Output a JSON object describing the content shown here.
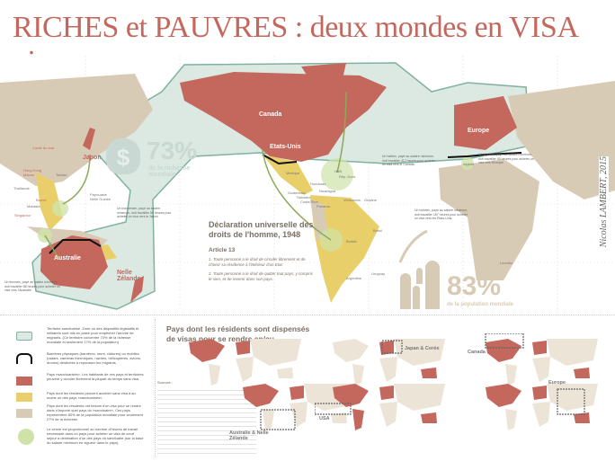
{
  "title": "RICHES et PAUVRES : deux mondes en VISA vis",
  "colors": {
    "sanctuary": "#c4675d",
    "visa_free": "#e9cf6a",
    "visa_needed": "#d8cbb5",
    "zone": "#dbe9e2",
    "circle": "#cfe3a8",
    "arrow": "#8fa85a"
  },
  "map": {
    "labels": {
      "canada": "Canada",
      "usa": "Etats-Unis",
      "europe": "Europe",
      "japon": "Japon",
      "australie": "Australie",
      "nz": "Nelle Zélande",
      "coree": "Corée du sud",
      "hongkong": "Hong Kong Macao",
      "brunei": "Brunei",
      "singapour": "Singapour",
      "taiwan": "Taïwan",
      "thailande": "Thaïlande",
      "malaisie": "Malaisie",
      "papouasie": "Papouasie Nelle Guinée",
      "mexique": "Mexique",
      "honduras": "Honduras",
      "guatemala": "Guatemala",
      "salvador": "Salvador",
      "costarica": "Costa Rica",
      "nicaragua": "Nicaragua",
      "panama": "Panama",
      "haiti": "Haïti",
      "repdom": "Rép. Dom.",
      "venezuela": "Venezuela",
      "guyane": "Guyane",
      "bresil": "Brésil",
      "bolivie": "Bolivie",
      "argentine": "Argentine",
      "uruguay": "Uruguay",
      "algerie": "Algérie",
      "lesotho": "Lesotho"
    },
    "stat_wealth": {
      "value": "73%",
      "caption": "de la richesse mondiale",
      "icon": "money-bag-icon"
    },
    "stat_population": {
      "value": "83%",
      "caption": "de la population mondiale",
      "icon": "people-icon"
    },
    "notes": {
      "haiti": "Un haïtien, payé au salaire minimum, doit travailler 412 heures pour acheter un visa vers le Canada.",
      "bolivie": "Un bolivien, payé au salaire minimum, doit travailler 187 heures pour acheter un visa vers les Etats-Unis.",
      "algerie": "Un algérien, payé au salaire minimum, doit travailler 90 heures pour acheter un visa vers l'Europe.",
      "indonesie": "Un indonésien, payé au salaire minimum, doit travailler 56 heures pour acheter un visa vers le Japon.",
      "timor": "Un timorais, payé au salaire minimum, doit travailler 88 heures pour acheter un visa vers l'Australie."
    },
    "declaration": {
      "title": "Déclaration universelle des droits de l'homme, 1948",
      "article": "Article 13",
      "p1": "1. Toute personne a le droit de circuler librement et de choisir sa résidence à l'intérieur d'un Etat.",
      "p2": "2. Toute personne a le droit de quitter tout pays, y compris le sien, et de revenir dans son pays."
    },
    "signature": "Nicolas LAMBERT, 2015"
  },
  "legend": [
    {
      "text": "Territoire sanctuarisé. Zone où des dispositifs législatifs et militaires sont mis en place pour empêcher l'arrivée de migrants. (Ce territoire concentre 73% de la richesse mondiale et seulement 17% de la population)"
    },
    {
      "text": "Barrières physiques (barrières, murs, clôtures) ou mobiles (radars, caméras thermiques, navires, hélicoptères, avions, drones) destinées à repousser les migrants."
    },
    {
      "text": "Pays «sanctuarisés». Les habitants de ces pays et territoires peuvent y circuler librement la plupart du temps sans visa."
    },
    {
      "text": "Pays dont les résidents peuvent accéder sans visa à au moins un des pays «sanctuarisés»."
    },
    {
      "text": "Pays dont les résidents ont besoin d'un visa pour se rendre dans n'importe quel pays du «sanctuaire». Ces pays représentent 83% de la population mondiale pour seulement 27% de la richesse."
    },
    {
      "text": "Le cercle est proportionnel au nombre d'heures de travail nécessaire dans un pays pour acheter un visa de court séjour à destination d'un des pays du sanctuaire (sur la base du salaire minimum en vigueur dans le pays)."
    }
  ],
  "visa_panel": {
    "title": "Pays dont les résidents sont dispensés de visas pour se rendre en/au ...",
    "sources": "Sources :",
    "politique": "Politique et coûts des visas :",
    "maps": [
      {
        "label": ""
      },
      {
        "label": "Japan & Corée"
      },
      {
        "label": "Canada"
      },
      {
        "label": "Australie & Nelle Zélande"
      },
      {
        "label": "USA"
      },
      {
        "label": "Europe"
      }
    ]
  }
}
